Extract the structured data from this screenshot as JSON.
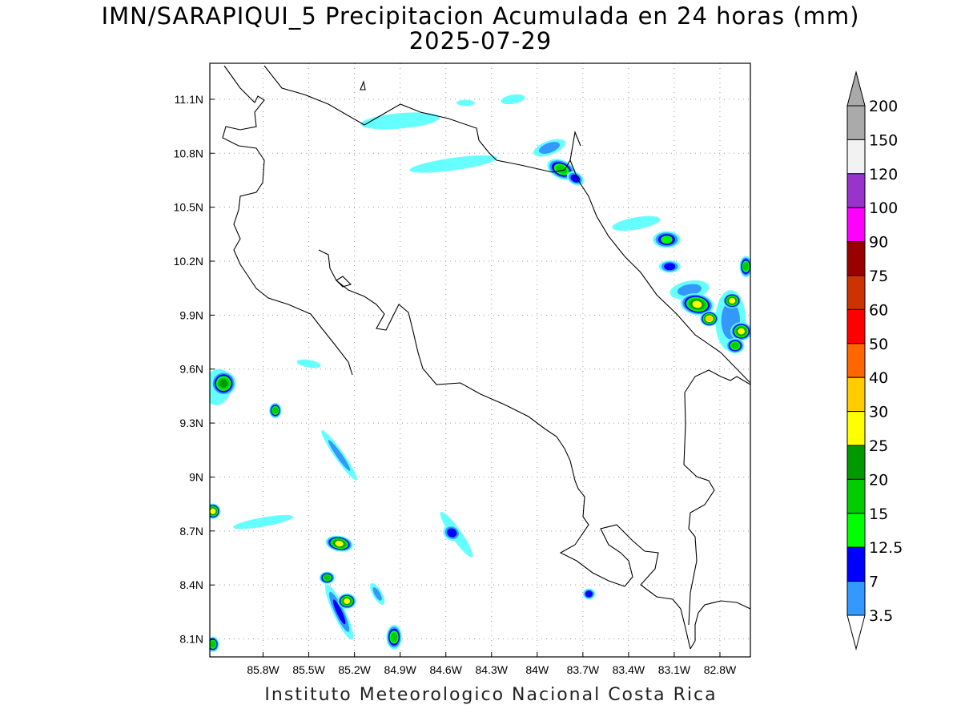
{
  "header": {
    "title": "IMN/SARAPIQUI_5 Precipitacion Acumulada en 24 horas (mm)",
    "date": "2025-07-29"
  },
  "footer": {
    "credit": "Instituto Meteorologico Nacional Costa Rica"
  },
  "map": {
    "lon_range": [
      -86.15,
      -82.6
    ],
    "lat_range": [
      8.0,
      11.3
    ],
    "lon_ticks": [
      "85.8W",
      "85.5W",
      "85.2W",
      "84.9W",
      "84.6W",
      "84.3W",
      "84W",
      "83.7W",
      "83.4W",
      "83.1W",
      "82.8W"
    ],
    "lon_tick_values": [
      -85.8,
      -85.5,
      -85.2,
      -84.9,
      -84.6,
      -84.3,
      -84.0,
      -83.7,
      -83.4,
      -83.1,
      -82.8
    ],
    "lat_ticks": [
      "8.1N",
      "8.4N",
      "8.7N",
      "9N",
      "9.3N",
      "9.6N",
      "9.9N",
      "10.2N",
      "10.5N",
      "10.8N",
      "11.1N"
    ],
    "lat_tick_values": [
      8.1,
      8.4,
      8.7,
      9.0,
      9.3,
      9.6,
      9.9,
      10.2,
      10.5,
      10.8,
      11.1
    ],
    "grid": "dotted"
  },
  "colorbar": {
    "levels": [
      "3.5",
      "7",
      "12.5",
      "15",
      "20",
      "25",
      "30",
      "40",
      "50",
      "60",
      "75",
      "90",
      "100",
      "120",
      "150",
      "200"
    ],
    "colors": [
      "#66ffff",
      "#3399ff",
      "#0000ff",
      "#00ff00",
      "#00cc00",
      "#009900",
      "#ffff00",
      "#ffcc00",
      "#ff6600",
      "#ff0000",
      "#cc3300",
      "#990000",
      "#ff00ff",
      "#9933cc",
      "#f2f2f2",
      "#aaaaaa"
    ],
    "arrow_top_color": "#aaaaaa",
    "arrow_bottom_color": "#ffffff"
  },
  "precip_blobs": [
    {
      "lon": -83.84,
      "lat": 10.71,
      "rx": 0.09,
      "ry": 0.05,
      "rot": 25,
      "level": 4
    },
    {
      "lon": -83.75,
      "lat": 10.66,
      "rx": 0.05,
      "ry": 0.03,
      "rot": 30,
      "level": 2
    },
    {
      "lon": -84.9,
      "lat": 10.98,
      "rx": 0.25,
      "ry": 0.04,
      "rot": -5,
      "level": 0
    },
    {
      "lon": -84.55,
      "lat": 10.74,
      "rx": 0.28,
      "ry": 0.03,
      "rot": -8,
      "level": 0
    },
    {
      "lon": -83.92,
      "lat": 10.83,
      "rx": 0.1,
      "ry": 0.035,
      "rot": -20,
      "level": 1
    },
    {
      "lon": -83.15,
      "lat": 10.32,
      "rx": 0.08,
      "ry": 0.045,
      "rot": 0,
      "level": 3
    },
    {
      "lon": -83.13,
      "lat": 10.17,
      "rx": 0.06,
      "ry": 0.03,
      "rot": 0,
      "level": 2
    },
    {
      "lon": -82.95,
      "lat": 9.96,
      "rx": 0.1,
      "ry": 0.06,
      "rot": 10,
      "level": 6
    },
    {
      "lon": -82.87,
      "lat": 9.88,
      "rx": 0.05,
      "ry": 0.04,
      "rot": 0,
      "level": 7
    },
    {
      "lon": -82.72,
      "lat": 9.98,
      "rx": 0.05,
      "ry": 0.04,
      "rot": 0,
      "level": 6
    },
    {
      "lon": -82.66,
      "lat": 9.81,
      "rx": 0.06,
      "ry": 0.05,
      "rot": 0,
      "level": 6
    },
    {
      "lon": -82.63,
      "lat": 10.17,
      "rx": 0.03,
      "ry": 0.06,
      "rot": 0,
      "level": 4
    },
    {
      "lon": -82.7,
      "lat": 9.73,
      "rx": 0.05,
      "ry": 0.04,
      "rot": 0,
      "level": 4
    },
    {
      "lon": -86.06,
      "lat": 9.52,
      "rx": 0.07,
      "ry": 0.07,
      "rot": 0,
      "level": 5
    },
    {
      "lon": -85.72,
      "lat": 9.37,
      "rx": 0.03,
      "ry": 0.04,
      "rot": 0,
      "level": 4
    },
    {
      "lon": -86.13,
      "lat": 8.81,
      "rx": 0.04,
      "ry": 0.04,
      "rot": 0,
      "level": 6
    },
    {
      "lon": -85.3,
      "lat": 8.63,
      "rx": 0.08,
      "ry": 0.04,
      "rot": 10,
      "level": 6
    },
    {
      "lon": -85.25,
      "lat": 8.31,
      "rx": 0.05,
      "ry": 0.04,
      "rot": 0,
      "level": 6
    },
    {
      "lon": -85.38,
      "lat": 8.44,
      "rx": 0.04,
      "ry": 0.03,
      "rot": 0,
      "level": 4
    },
    {
      "lon": -84.94,
      "lat": 8.11,
      "rx": 0.04,
      "ry": 0.07,
      "rot": 0,
      "level": 4
    },
    {
      "lon": -84.56,
      "lat": 8.69,
      "rx": 0.05,
      "ry": 0.04,
      "rot": 30,
      "level": 2
    },
    {
      "lon": -83.66,
      "lat": 8.35,
      "rx": 0.03,
      "ry": 0.025,
      "rot": 0,
      "level": 2
    },
    {
      "lon": -86.13,
      "lat": 8.07,
      "rx": 0.03,
      "ry": 0.04,
      "rot": 0,
      "level": 4
    }
  ],
  "precip_streaks": [
    {
      "lon": -85.3,
      "lat": 9.12,
      "rx": 0.2,
      "ry": 0.03,
      "rot": 55,
      "level": 1
    },
    {
      "lon": -85.5,
      "lat": 9.63,
      "rx": 0.08,
      "ry": 0.025,
      "rot": 10,
      "level": 0
    },
    {
      "lon": -85.3,
      "lat": 8.25,
      "rx": 0.2,
      "ry": 0.04,
      "rot": 65,
      "level": 2
    },
    {
      "lon": -85.05,
      "lat": 8.35,
      "rx": 0.08,
      "ry": 0.03,
      "rot": 60,
      "level": 1
    },
    {
      "lon": -84.53,
      "lat": 8.68,
      "rx": 0.18,
      "ry": 0.035,
      "rot": 55,
      "level": 0
    },
    {
      "lon": -83.0,
      "lat": 10.04,
      "rx": 0.13,
      "ry": 0.06,
      "rot": -10,
      "level": 1
    },
    {
      "lon": -82.73,
      "lat": 9.87,
      "rx": 0.1,
      "ry": 0.2,
      "rot": 0,
      "level": 1
    },
    {
      "lon": -83.35,
      "lat": 10.41,
      "rx": 0.16,
      "ry": 0.04,
      "rot": -10,
      "level": 0
    },
    {
      "lon": -86.1,
      "lat": 9.5,
      "rx": 0.09,
      "ry": 0.12,
      "rot": 10,
      "level": 0
    },
    {
      "lon": -85.8,
      "lat": 8.75,
      "rx": 0.2,
      "ry": 0.03,
      "rot": -10,
      "level": 0
    },
    {
      "lon": -84.47,
      "lat": 11.08,
      "rx": 0.06,
      "ry": 0.02,
      "rot": 0,
      "level": 0
    },
    {
      "lon": -84.16,
      "lat": 11.1,
      "rx": 0.08,
      "ry": 0.03,
      "rot": -10,
      "level": 0
    }
  ]
}
